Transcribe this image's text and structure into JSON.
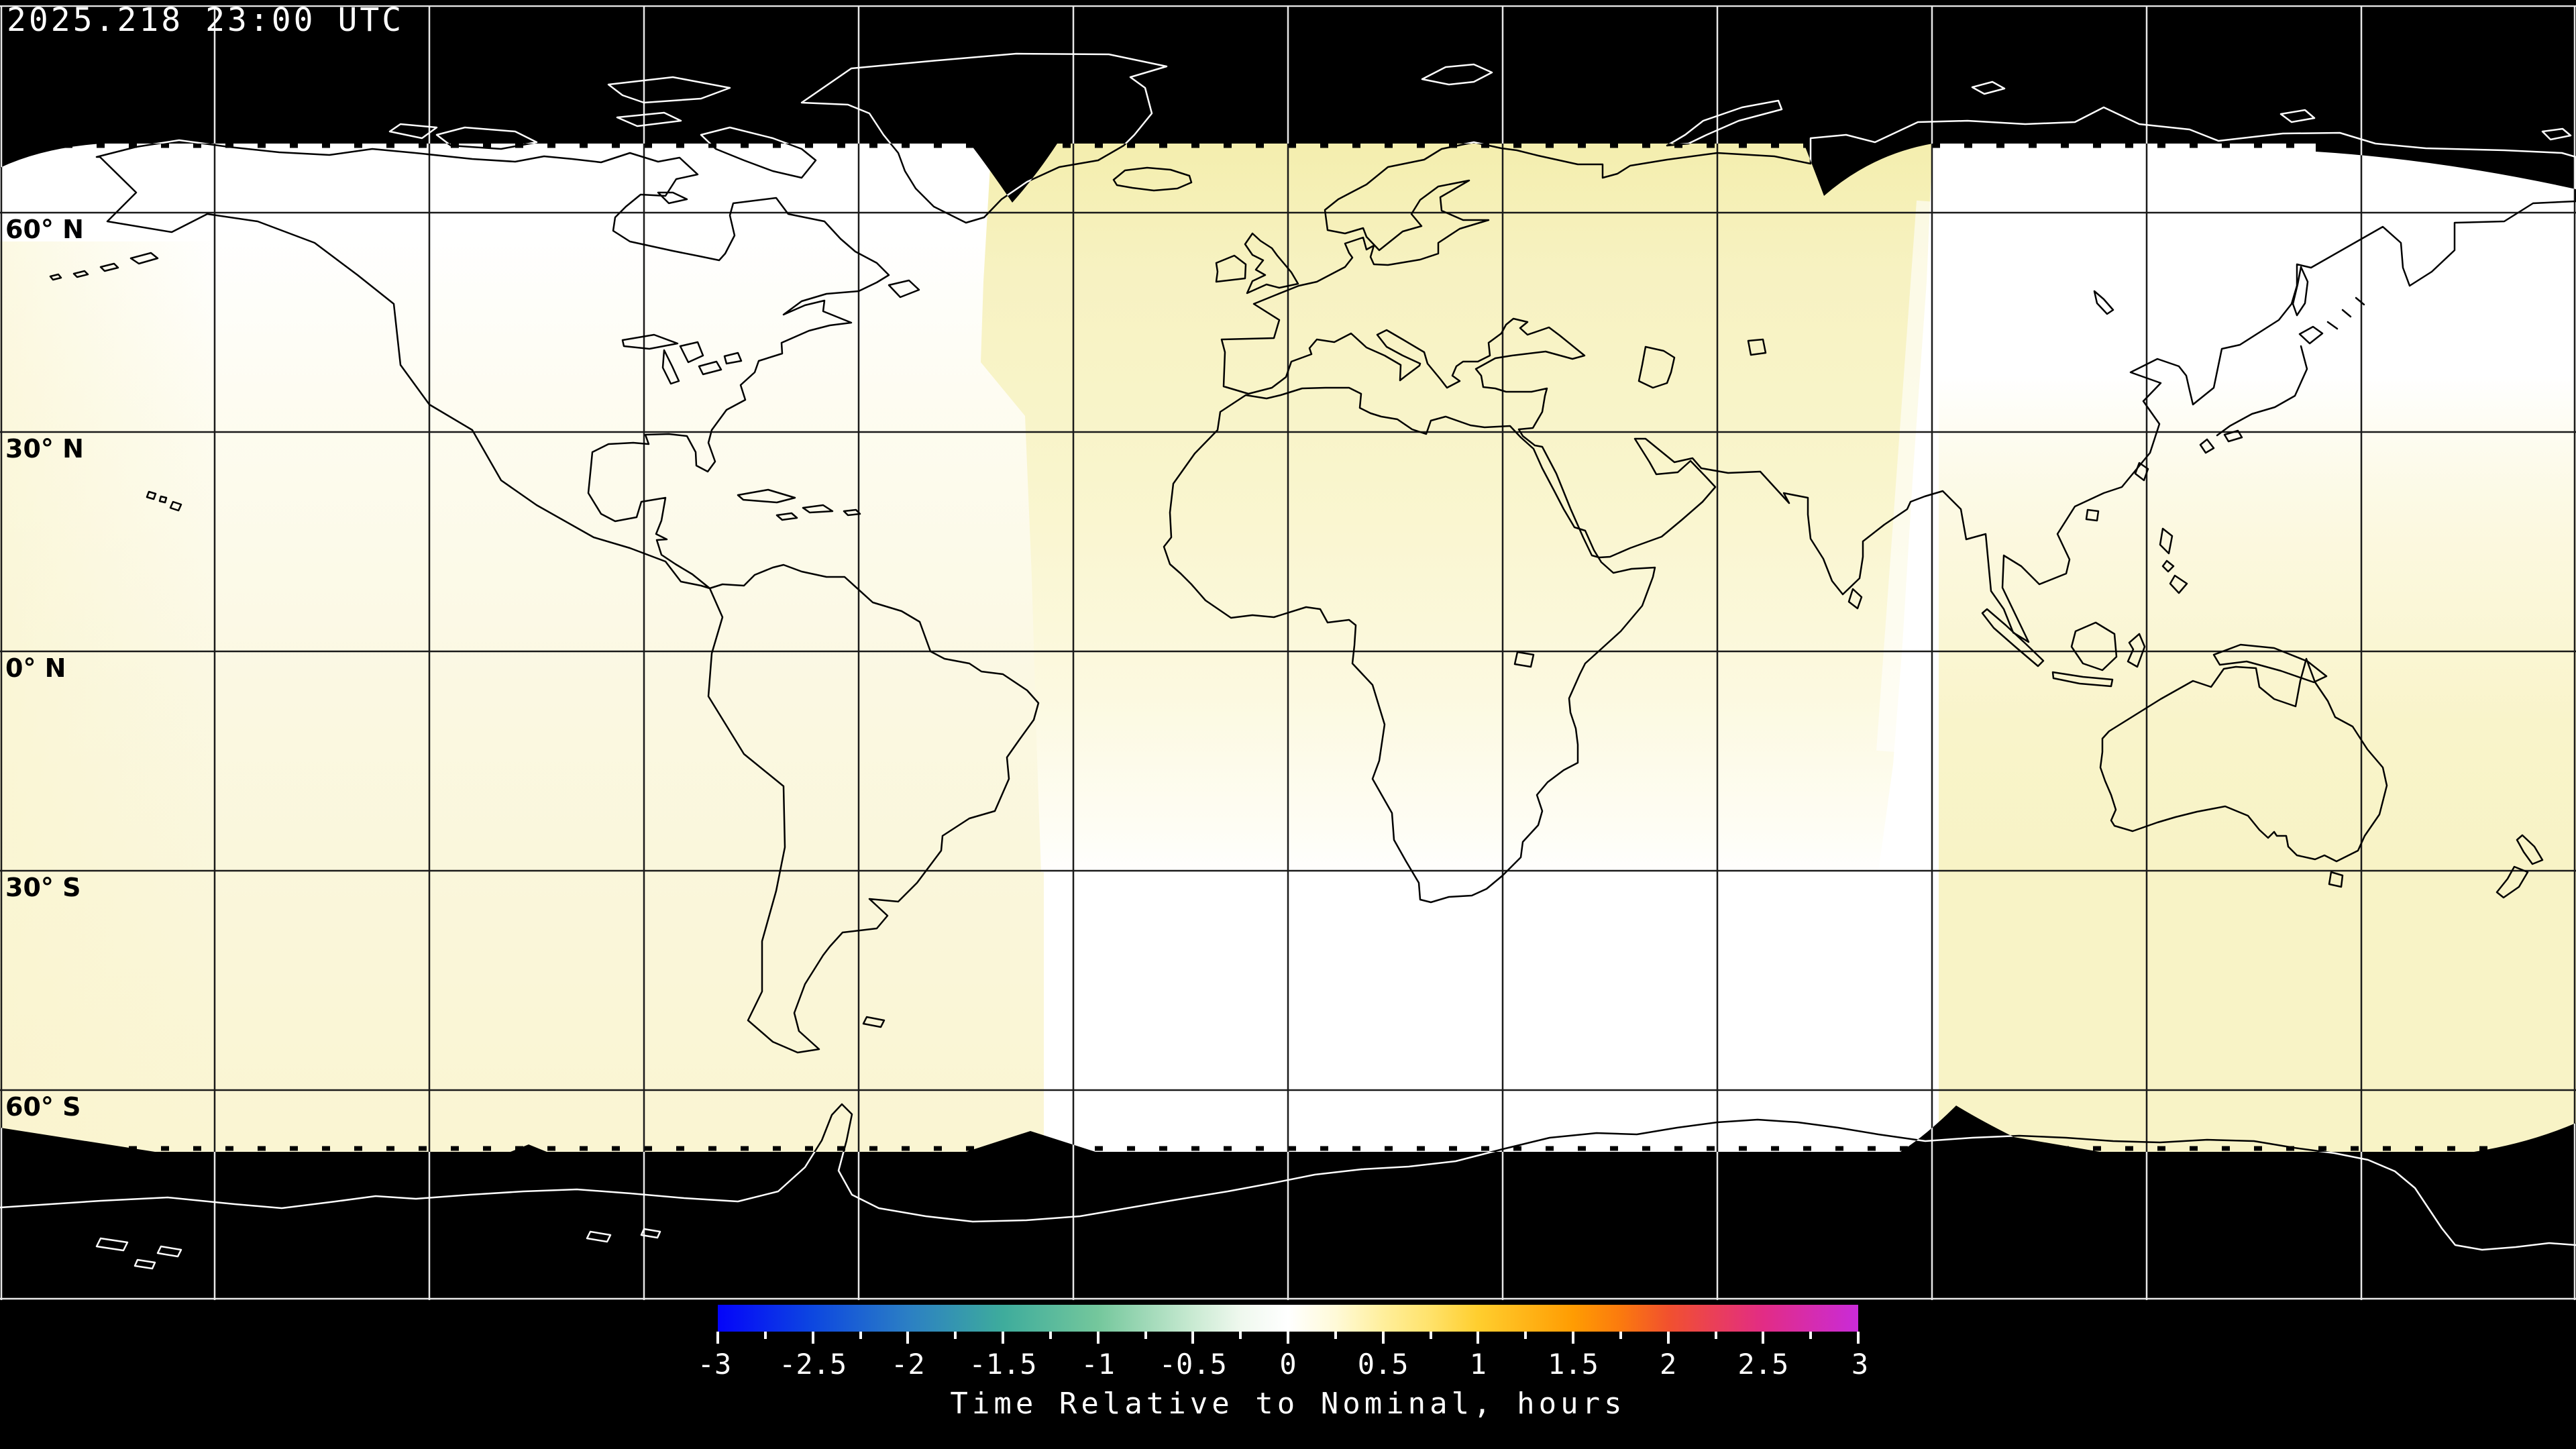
{
  "header": {
    "timestamp": "2025.218 23:00 UTC"
  },
  "map": {
    "latitude_labels": [
      "60° N",
      "30° N",
      "0° N",
      "30° S",
      "60° S"
    ],
    "graticule_interval_deg": 30,
    "no_data_color": "#000000",
    "coastline_color_over_data": "#000000",
    "coastline_color_over_no_data": "#ffffff"
  },
  "colorbar": {
    "title": "Time Relative to Nominal, hours",
    "tick_labels": [
      "-3",
      "-2.5",
      "-2",
      "-1.5",
      "-1",
      "-0.5",
      "0",
      "0.5",
      "1",
      "1.5",
      "2",
      "2.5",
      "3"
    ],
    "min": -3,
    "max": 3,
    "gradient_stops": [
      {
        "value": -3,
        "color": "#0404fa"
      },
      {
        "value": -2.5,
        "color": "#0d47e0"
      },
      {
        "value": -2,
        "color": "#2b7fc4"
      },
      {
        "value": -1.5,
        "color": "#3eac9c"
      },
      {
        "value": -1,
        "color": "#74c79c"
      },
      {
        "value": -0.5,
        "color": "#c9ead2"
      },
      {
        "value": -0.25,
        "color": "#eff8ee"
      },
      {
        "value": 0,
        "color": "#ffffff"
      },
      {
        "value": 0.25,
        "color": "#fffad8"
      },
      {
        "value": 0.5,
        "color": "#ffef9c"
      },
      {
        "value": 0.75,
        "color": "#ffe26a"
      },
      {
        "value": 1,
        "color": "#ffce2e"
      },
      {
        "value": 1.5,
        "color": "#ff9c02"
      },
      {
        "value": 1.75,
        "color": "#fb7a0e"
      },
      {
        "value": 2,
        "color": "#f1512e"
      },
      {
        "value": 2.5,
        "color": "#e22c85"
      },
      {
        "value": 3,
        "color": "#c92bd8"
      }
    ]
  },
  "chart_data": {
    "type": "heatmap",
    "title": "Time Relative to Nominal, hours",
    "timestamp": "2025.218 23:00 UTC",
    "projection": "equirectangular world map",
    "value_range_hours": [
      -3,
      3
    ],
    "graticule_deg": 30,
    "regions": [
      {
        "area": "North America / NE Pacific observation swath",
        "approx_value_hours": 0
      },
      {
        "area": "Greenland / N Atlantic / Europe / Africa / W Asia swath",
        "approx_value_hours": 0.3
      },
      {
        "area": "East Asia / NW Pacific swath",
        "approx_value_hours": 0
      },
      {
        "area": "Australia / New Zealand / S Pacific swath",
        "approx_value_hours": 0.3
      },
      {
        "area": "South America / SE Pacific / S Atlantic swath",
        "approx_value_hours": 0.2
      },
      {
        "area": "Southern Indian Ocean swath",
        "approx_value_hours": 0
      },
      {
        "area": "Polar caps poleward of ~70°",
        "approx_value_hours": null,
        "note": "no data (black)"
      }
    ]
  }
}
